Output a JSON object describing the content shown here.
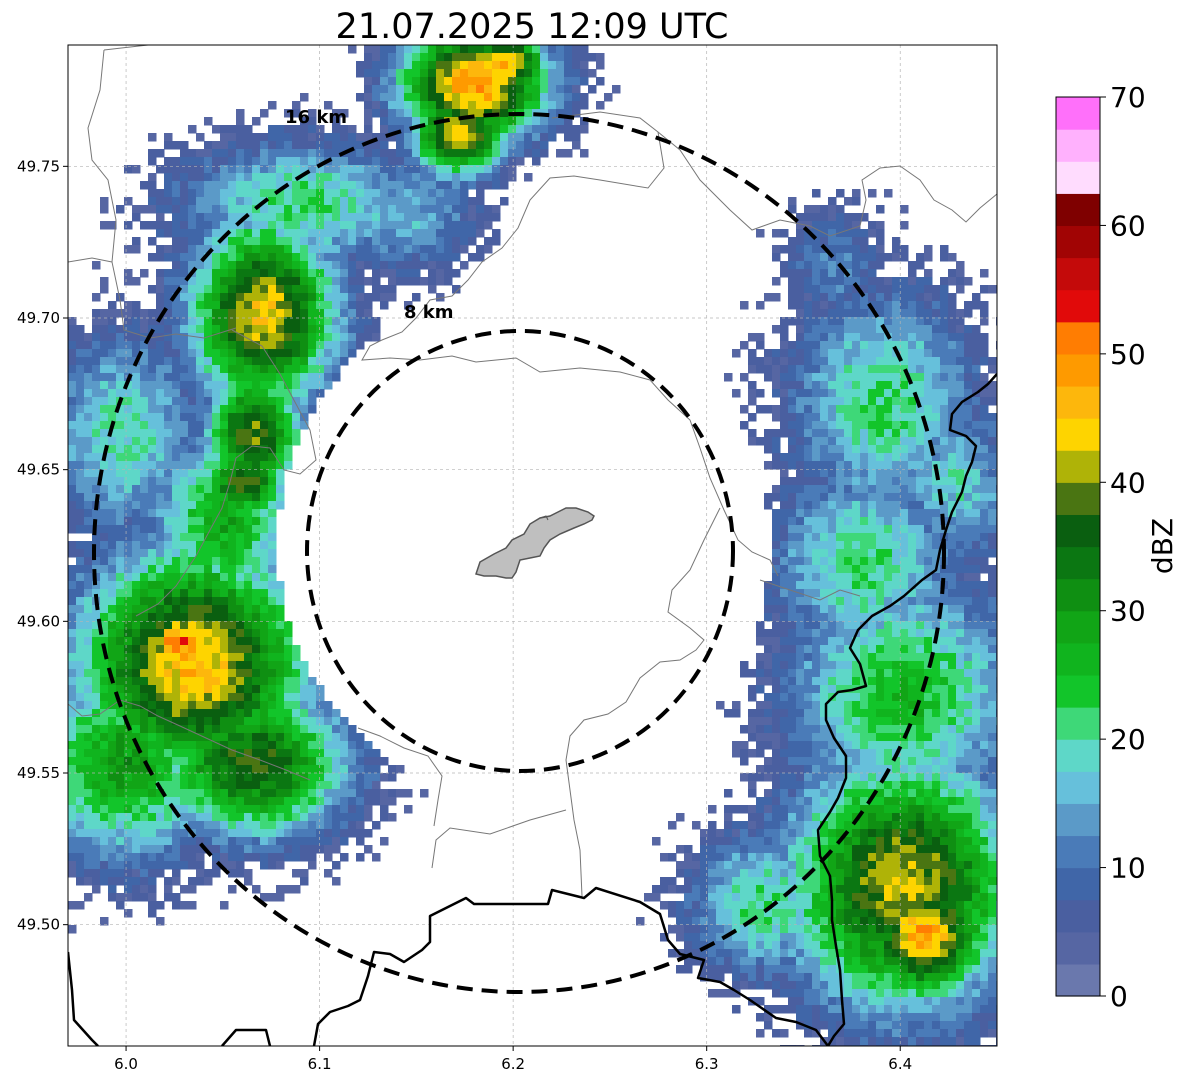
{
  "title": "21.07.2025 12:09 UTC",
  "axes": {
    "x_ticks": [
      "6.0",
      "6.1",
      "6.2",
      "6.3",
      "6.4"
    ],
    "y_ticks": [
      "49.75",
      "49.70",
      "49.65",
      "49.60",
      "49.55",
      "49.50"
    ],
    "x_range": [
      5.97,
      6.45
    ],
    "y_range": [
      49.46,
      49.79
    ],
    "grid": true
  },
  "range_rings": [
    {
      "label": "16 km",
      "radius_km": 16
    },
    {
      "label": "8 km",
      "radius_km": 8
    }
  ],
  "radar_center": {
    "lon": 6.203,
    "lat": 49.623
  },
  "colorbar": {
    "label": "dBZ",
    "ticks": [
      "0",
      "10",
      "20",
      "30",
      "40",
      "50",
      "60",
      "70"
    ],
    "min": 0,
    "max": 70,
    "step": 2.5,
    "colors": [
      "#6a78ad",
      "#5666a3",
      "#4a5fa0",
      "#4066a8",
      "#4a7bb8",
      "#5b9ac8",
      "#66c0db",
      "#5ed7c8",
      "#3ed878",
      "#12c52a",
      "#10b41e",
      "#11a516",
      "#0f8f12",
      "#0b7712",
      "#0a5f10",
      "#4a7512",
      "#afb307",
      "#fed400",
      "#fdb70c",
      "#fe9a00",
      "#ff7d02",
      "#e10a0a",
      "#c40a0a",
      "#a10404",
      "#7f0000",
      "#ffdcfe",
      "#ffb1fd",
      "#ff70fa",
      "#ea33ec"
    ]
  },
  "colors": {
    "ring": "#000000",
    "grid": "#b5b5b5",
    "border": "#000000",
    "thin_border": "#777777",
    "city_fill": "#bfbfbf"
  }
}
